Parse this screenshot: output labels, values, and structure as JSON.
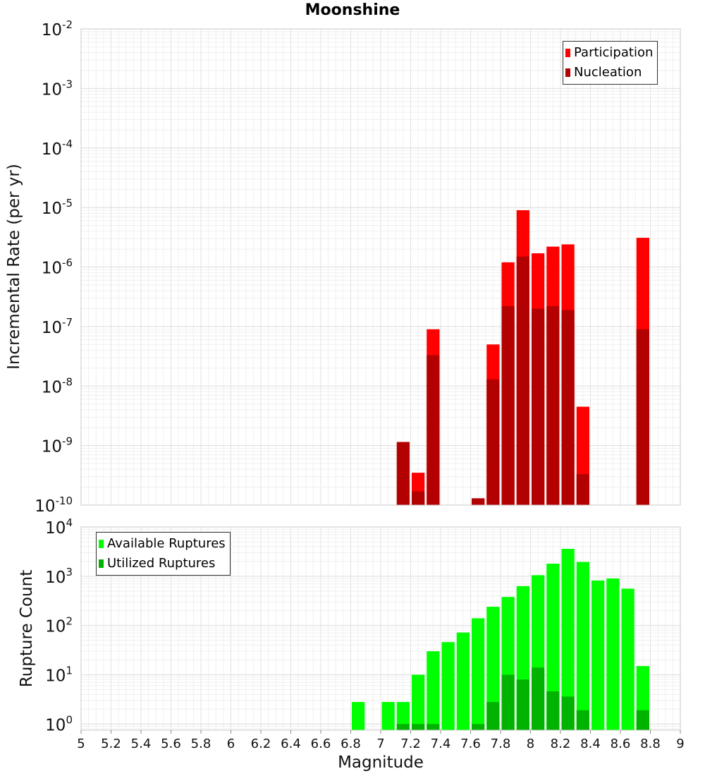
{
  "chart_data": [
    {
      "type": "bar",
      "title": "Moonshine",
      "xlabel": "Magnitude",
      "ylabel": "Incremental Rate (per yr)",
      "yscale": "log",
      "ylim": [
        1e-10,
        0.01
      ],
      "xlim": [
        5,
        9
      ],
      "bin_width": 0.1,
      "y_tick_labels": [
        {
          "base": "10",
          "exp": "-10"
        },
        {
          "base": "10",
          "exp": "-9"
        },
        {
          "base": "10",
          "exp": "-8"
        },
        {
          "base": "10",
          "exp": "-7"
        },
        {
          "base": "10",
          "exp": "-6"
        },
        {
          "base": "10",
          "exp": "-5"
        },
        {
          "base": "10",
          "exp": "-4"
        },
        {
          "base": "10",
          "exp": "-3"
        },
        {
          "base": "10",
          "exp": "-2"
        }
      ],
      "legend_position": "top-right",
      "series": [
        {
          "name": "Participation",
          "color": "#ff0000",
          "x": [
            7.25,
            7.35,
            7.65,
            7.75,
            7.85,
            7.95,
            8.05,
            8.15,
            8.25,
            8.35,
            8.75
          ],
          "values": [
            3.5e-10,
            9e-08,
            1.3e-10,
            5e-08,
            1.2e-06,
            9e-06,
            1.7e-06,
            2.2e-06,
            2.4e-06,
            4.5e-09,
            3.1e-06
          ]
        },
        {
          "name": "Nucleation",
          "color": "#b30000",
          "x": [
            7.15,
            7.25,
            7.35,
            7.65,
            7.75,
            7.85,
            7.95,
            8.05,
            8.15,
            8.25,
            8.35,
            8.75
          ],
          "values": [
            1.15e-09,
            1.7e-10,
            3.3e-08,
            1.3e-10,
            1.3e-08,
            2.2e-07,
            1.5e-06,
            2e-07,
            2.2e-07,
            1.9e-07,
            3.3e-10,
            9e-08
          ]
        }
      ]
    },
    {
      "type": "bar",
      "title": "",
      "xlabel": "Magnitude",
      "ylabel": "Rupture Count",
      "yscale": "log",
      "ylim": [
        0.75,
        10000.0
      ],
      "xlim": [
        5,
        9
      ],
      "bin_width": 0.1,
      "x_tick_labels": [
        "5",
        "5.2",
        "5.4",
        "5.6",
        "5.8",
        "6",
        "6.2",
        "6.4",
        "6.6",
        "6.8",
        "7",
        "7.2",
        "7.4",
        "7.6",
        "7.8",
        "8",
        "8.2",
        "8.4",
        "8.6",
        "8.8",
        "9"
      ],
      "y_tick_labels": [
        {
          "base": "10",
          "exp": "0"
        },
        {
          "base": "10",
          "exp": "1"
        },
        {
          "base": "10",
          "exp": "2"
        },
        {
          "base": "10",
          "exp": "3"
        },
        {
          "base": "10",
          "exp": "4"
        }
      ],
      "legend_position": "top-left",
      "series": [
        {
          "name": "Available Ruptures",
          "color": "#00ff00",
          "x": [
            6.85,
            7.05,
            7.15,
            7.25,
            7.35,
            7.45,
            7.55,
            7.65,
            7.75,
            7.85,
            7.95,
            8.05,
            8.15,
            8.25,
            8.35,
            8.45,
            8.55,
            8.65,
            8.75
          ],
          "values": [
            2.8,
            2.8,
            2.8,
            10,
            30,
            46,
            72,
            140,
            240,
            380,
            630,
            1050,
            1800,
            3600,
            1950,
            820,
            900,
            560,
            15
          ]
        },
        {
          "name": "Utilized Ruptures",
          "color": "#00b300",
          "x": [
            7.15,
            7.25,
            7.35,
            7.65,
            7.75,
            7.85,
            7.95,
            8.05,
            8.15,
            8.25,
            8.35,
            8.75
          ],
          "values": [
            1,
            1,
            1,
            1,
            2.8,
            10,
            8,
            14,
            4.6,
            3.6,
            1.9,
            1.9
          ]
        }
      ]
    }
  ]
}
